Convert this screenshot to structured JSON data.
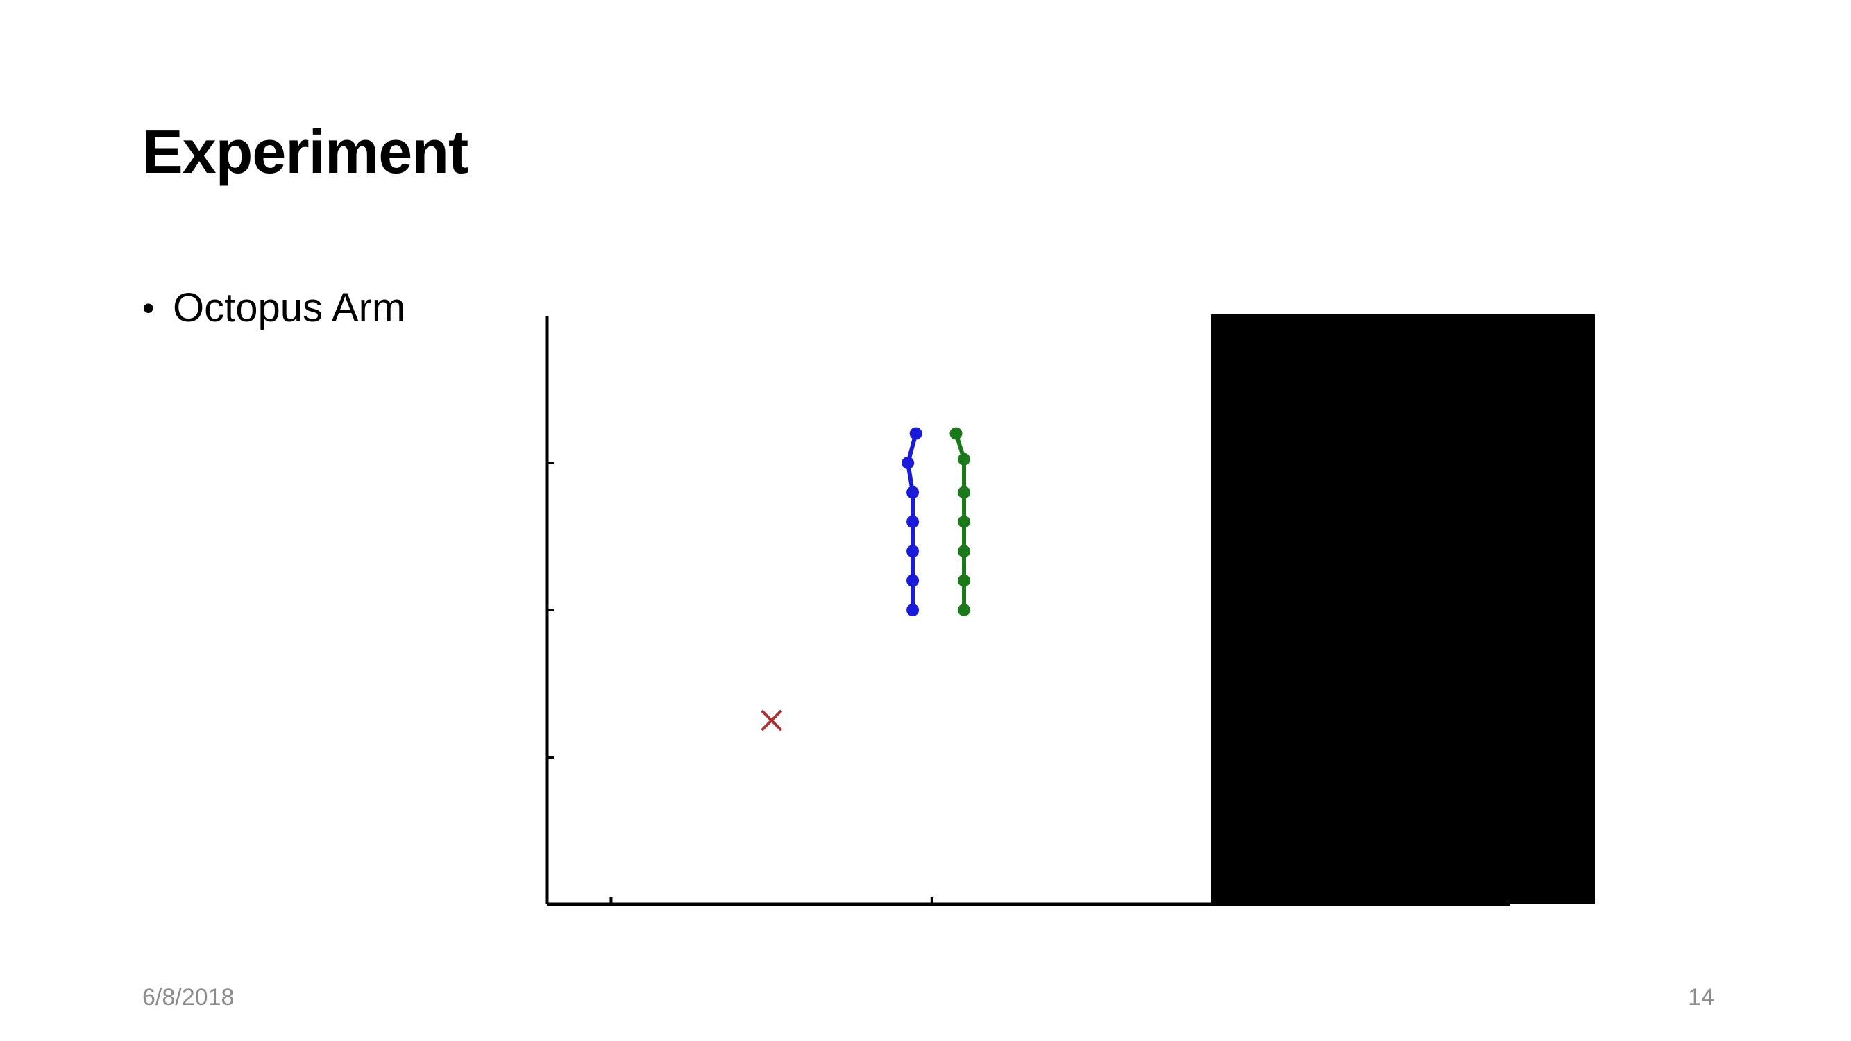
{
  "slide": {
    "title": "Experiment",
    "bullets": [
      {
        "text": "Octopus Arm"
      }
    ],
    "footer": {
      "date": "6/8/2018",
      "page_number": "14"
    }
  },
  "chart_data": {
    "type": "line",
    "title": "",
    "xlabel": "",
    "ylabel": "",
    "xlim": [
      0,
      6
    ],
    "ylim": [
      0,
      8
    ],
    "grid": false,
    "legend": "none",
    "x_ticks": [
      0.4,
      2.4,
      4.4
    ],
    "y_ticks": [
      2,
      4,
      6
    ],
    "series": [
      {
        "color": "#1a1adb",
        "marker": "circle",
        "points": [
          [
            2.3,
            6.4
          ],
          [
            2.25,
            6.0
          ],
          [
            2.28,
            5.6
          ],
          [
            2.28,
            5.2
          ],
          [
            2.28,
            4.8
          ],
          [
            2.28,
            4.4
          ],
          [
            2.28,
            4.0
          ]
        ]
      },
      {
        "color": "#1a7a1a",
        "marker": "circle",
        "points": [
          [
            2.55,
            6.4
          ],
          [
            2.6,
            6.05
          ],
          [
            2.6,
            5.6
          ],
          [
            2.6,
            5.2
          ],
          [
            2.6,
            4.8
          ],
          [
            2.6,
            4.4
          ],
          [
            2.6,
            4.0
          ]
        ]
      }
    ],
    "target_marker": {
      "symbol": "x",
      "color": "#b03030",
      "point": [
        1.4,
        2.5
      ]
    }
  },
  "overlay": {
    "black_panel_color": "#000000"
  }
}
